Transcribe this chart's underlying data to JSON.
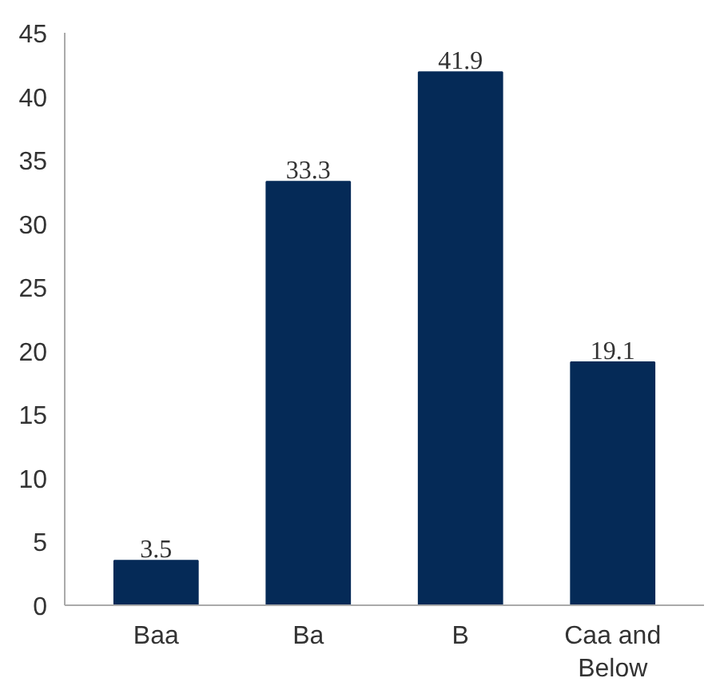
{
  "chart_data": {
    "type": "bar",
    "categories": [
      "Baa",
      "Ba",
      "B",
      "Caa and Below"
    ],
    "values": [
      3.5,
      33.3,
      41.9,
      19.1
    ],
    "color": "#052a57",
    "ylim": [
      0,
      45
    ],
    "yticks": [
      0,
      5,
      10,
      15,
      20,
      25,
      30,
      35,
      40,
      45
    ],
    "grid": false,
    "data_labels": true
  }
}
